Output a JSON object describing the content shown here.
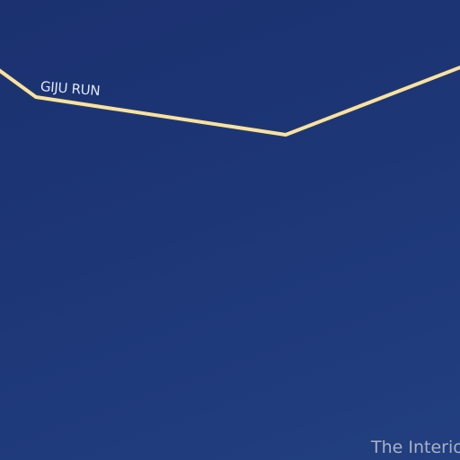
{
  "map": {
    "background_color": "#1d3574",
    "road": {
      "name": "GIJU RUN",
      "stroke_color": "#f1e2b6",
      "casing_color": "#3a3a3a"
    },
    "region": {
      "label": "The Interio",
      "label_color": "#a9b2c7"
    }
  }
}
